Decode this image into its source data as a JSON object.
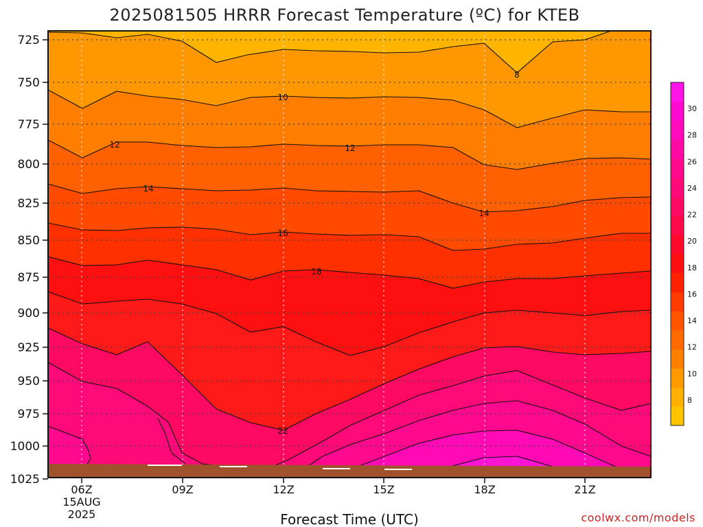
{
  "chart_data": {
    "type": "heatmap",
    "title": "2025081505 HRRR Forecast Temperature (ºC) for KTEB",
    "xlabel": "Forecast Time (UTC)",
    "credit": "coolwx.com/models",
    "y_axis": {
      "ticks": [
        "725",
        "750",
        "775",
        "800",
        "825",
        "850",
        "875",
        "900",
        "925",
        "950",
        "975",
        "1000",
        "1025"
      ],
      "inverted": true
    },
    "x_axis": {
      "ticks": [
        {
          "label": "06Z",
          "date_line1": "15AUG",
          "date_line2": "2025"
        },
        {
          "label": "09Z"
        },
        {
          "label": "12Z"
        },
        {
          "label": "15Z"
        },
        {
          "label": "18Z"
        },
        {
          "label": "21Z"
        }
      ]
    },
    "grid": true,
    "colorbar": {
      "placement": "right",
      "ticks": [
        "8",
        "10",
        "12",
        "14",
        "16",
        "18",
        "20",
        "22",
        "24",
        "26",
        "28",
        "30"
      ],
      "colors": [
        "#ffc400",
        "#ffb000",
        "#ff9900",
        "#ff8000",
        "#ff6a00",
        "#ff5500",
        "#ff3c00",
        "#ff2200",
        "#ff1010",
        "#ff0a2a",
        "#ff0a48",
        "#ff0a62",
        "#ff0a78",
        "#ff0a8e",
        "#ff0aa4",
        "#ff0abc",
        "#ff0ad0",
        "#ff14e8"
      ]
    },
    "contour_labels": [
      "8",
      "10",
      "12",
      "12",
      "14",
      "14",
      "16",
      "18",
      "22"
    ],
    "ground_color": "#a0522d"
  }
}
